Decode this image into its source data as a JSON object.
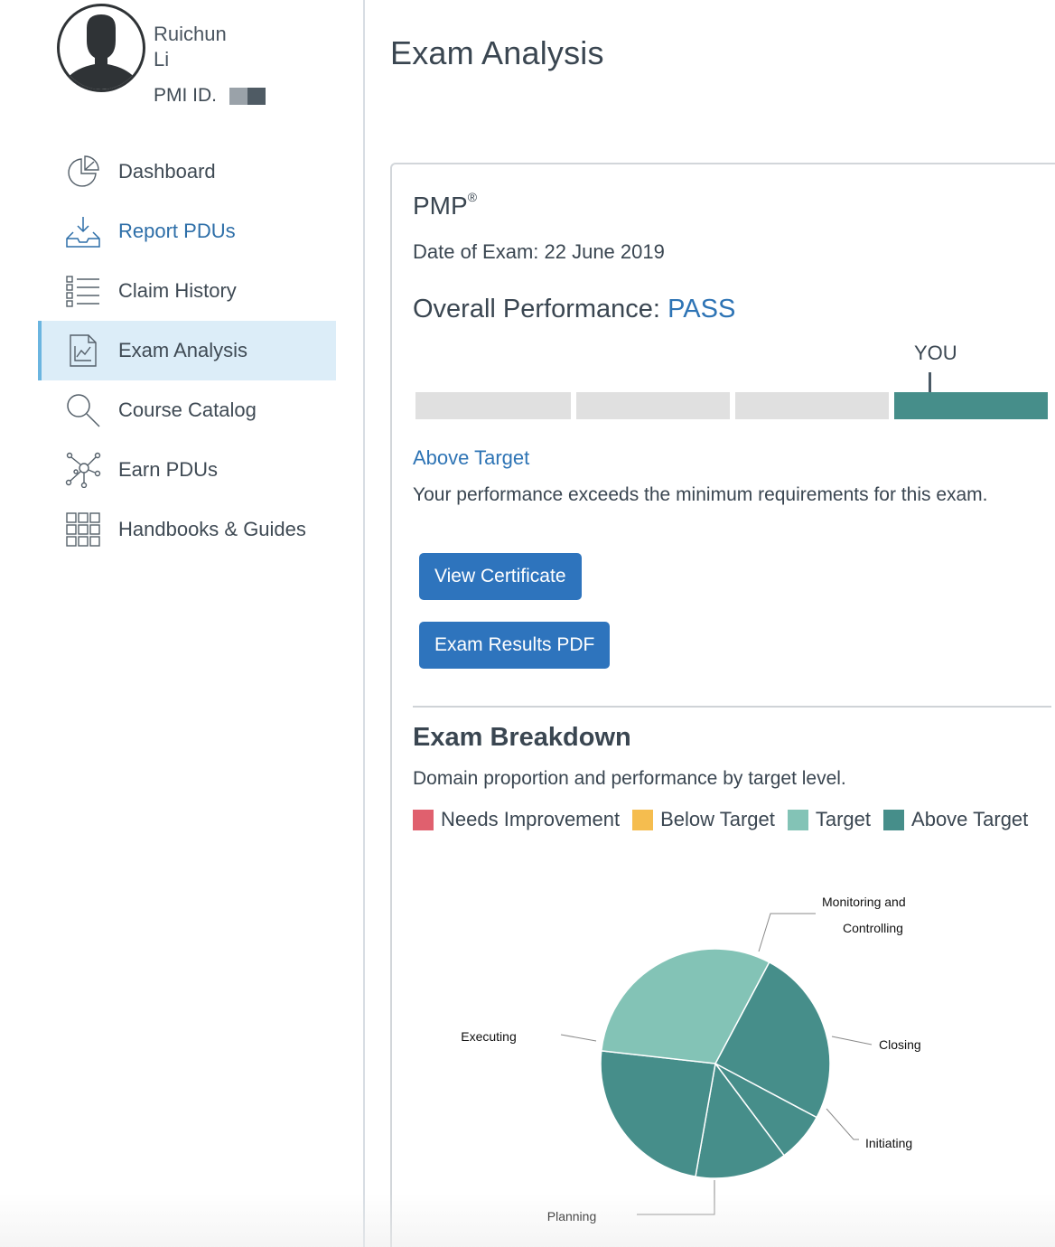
{
  "user": {
    "first_name": "Ruichun",
    "last_name": "Li",
    "pmi_id_label": "PMI ID."
  },
  "sidebar": {
    "items": [
      {
        "label": "Dashboard",
        "icon": "pie-chart-icon"
      },
      {
        "label": "Report PDUs",
        "icon": "inbox-download-icon"
      },
      {
        "label": "Claim History",
        "icon": "list-icon"
      },
      {
        "label": "Exam Analysis",
        "icon": "document-chart-icon"
      },
      {
        "label": "Course Catalog",
        "icon": "search-icon"
      },
      {
        "label": "Earn PDUs",
        "icon": "network-icon"
      },
      {
        "label": "Handbooks & Guides",
        "icon": "grid-icon"
      }
    ],
    "active": "Exam Analysis"
  },
  "page": {
    "title": "Exam Analysis"
  },
  "exam": {
    "name": "PMP",
    "name_mark": "®",
    "date_text": "Date of Exam: 22 June 2019",
    "overall_label": "Overall Performance:",
    "overall_result": "PASS",
    "you_label": "YOU",
    "scale_level": 4,
    "scale_levels": 4,
    "level_title": "Above Target",
    "level_description": "Your performance exceeds the minimum requirements for this exam."
  },
  "buttons": {
    "view_certificate": "View Certificate",
    "exam_results_pdf": "Exam Results PDF"
  },
  "breakdown": {
    "title": "Exam Breakdown",
    "description": "Domain proportion and performance by target level.",
    "legend": [
      {
        "label": "Needs Improvement",
        "color": "#e0606e"
      },
      {
        "label": "Below Target",
        "color": "#f5bd4f"
      },
      {
        "label": "Target",
        "color": "#83c3b6"
      },
      {
        "label": "Above Target",
        "color": "#468e8a"
      }
    ]
  },
  "colors": {
    "accent_blue": "#2e74bd",
    "link_blue": "#2d6ea8",
    "active_nav_bg": "#dcedf8",
    "scale_on": "#468e8a",
    "scale_off": "#e0e0e0"
  },
  "chart_data": {
    "type": "pie",
    "title": "",
    "slices": [
      {
        "label": "Monitoring and Controlling",
        "value": 25,
        "level": "Above Target"
      },
      {
        "label": "Closing",
        "value": 7,
        "level": "Above Target"
      },
      {
        "label": "Initiating",
        "value": 13,
        "level": "Above Target"
      },
      {
        "label": "Planning",
        "value": 24,
        "level": "Above Target"
      },
      {
        "label": "Executing",
        "value": 31,
        "level": "Target"
      }
    ]
  }
}
